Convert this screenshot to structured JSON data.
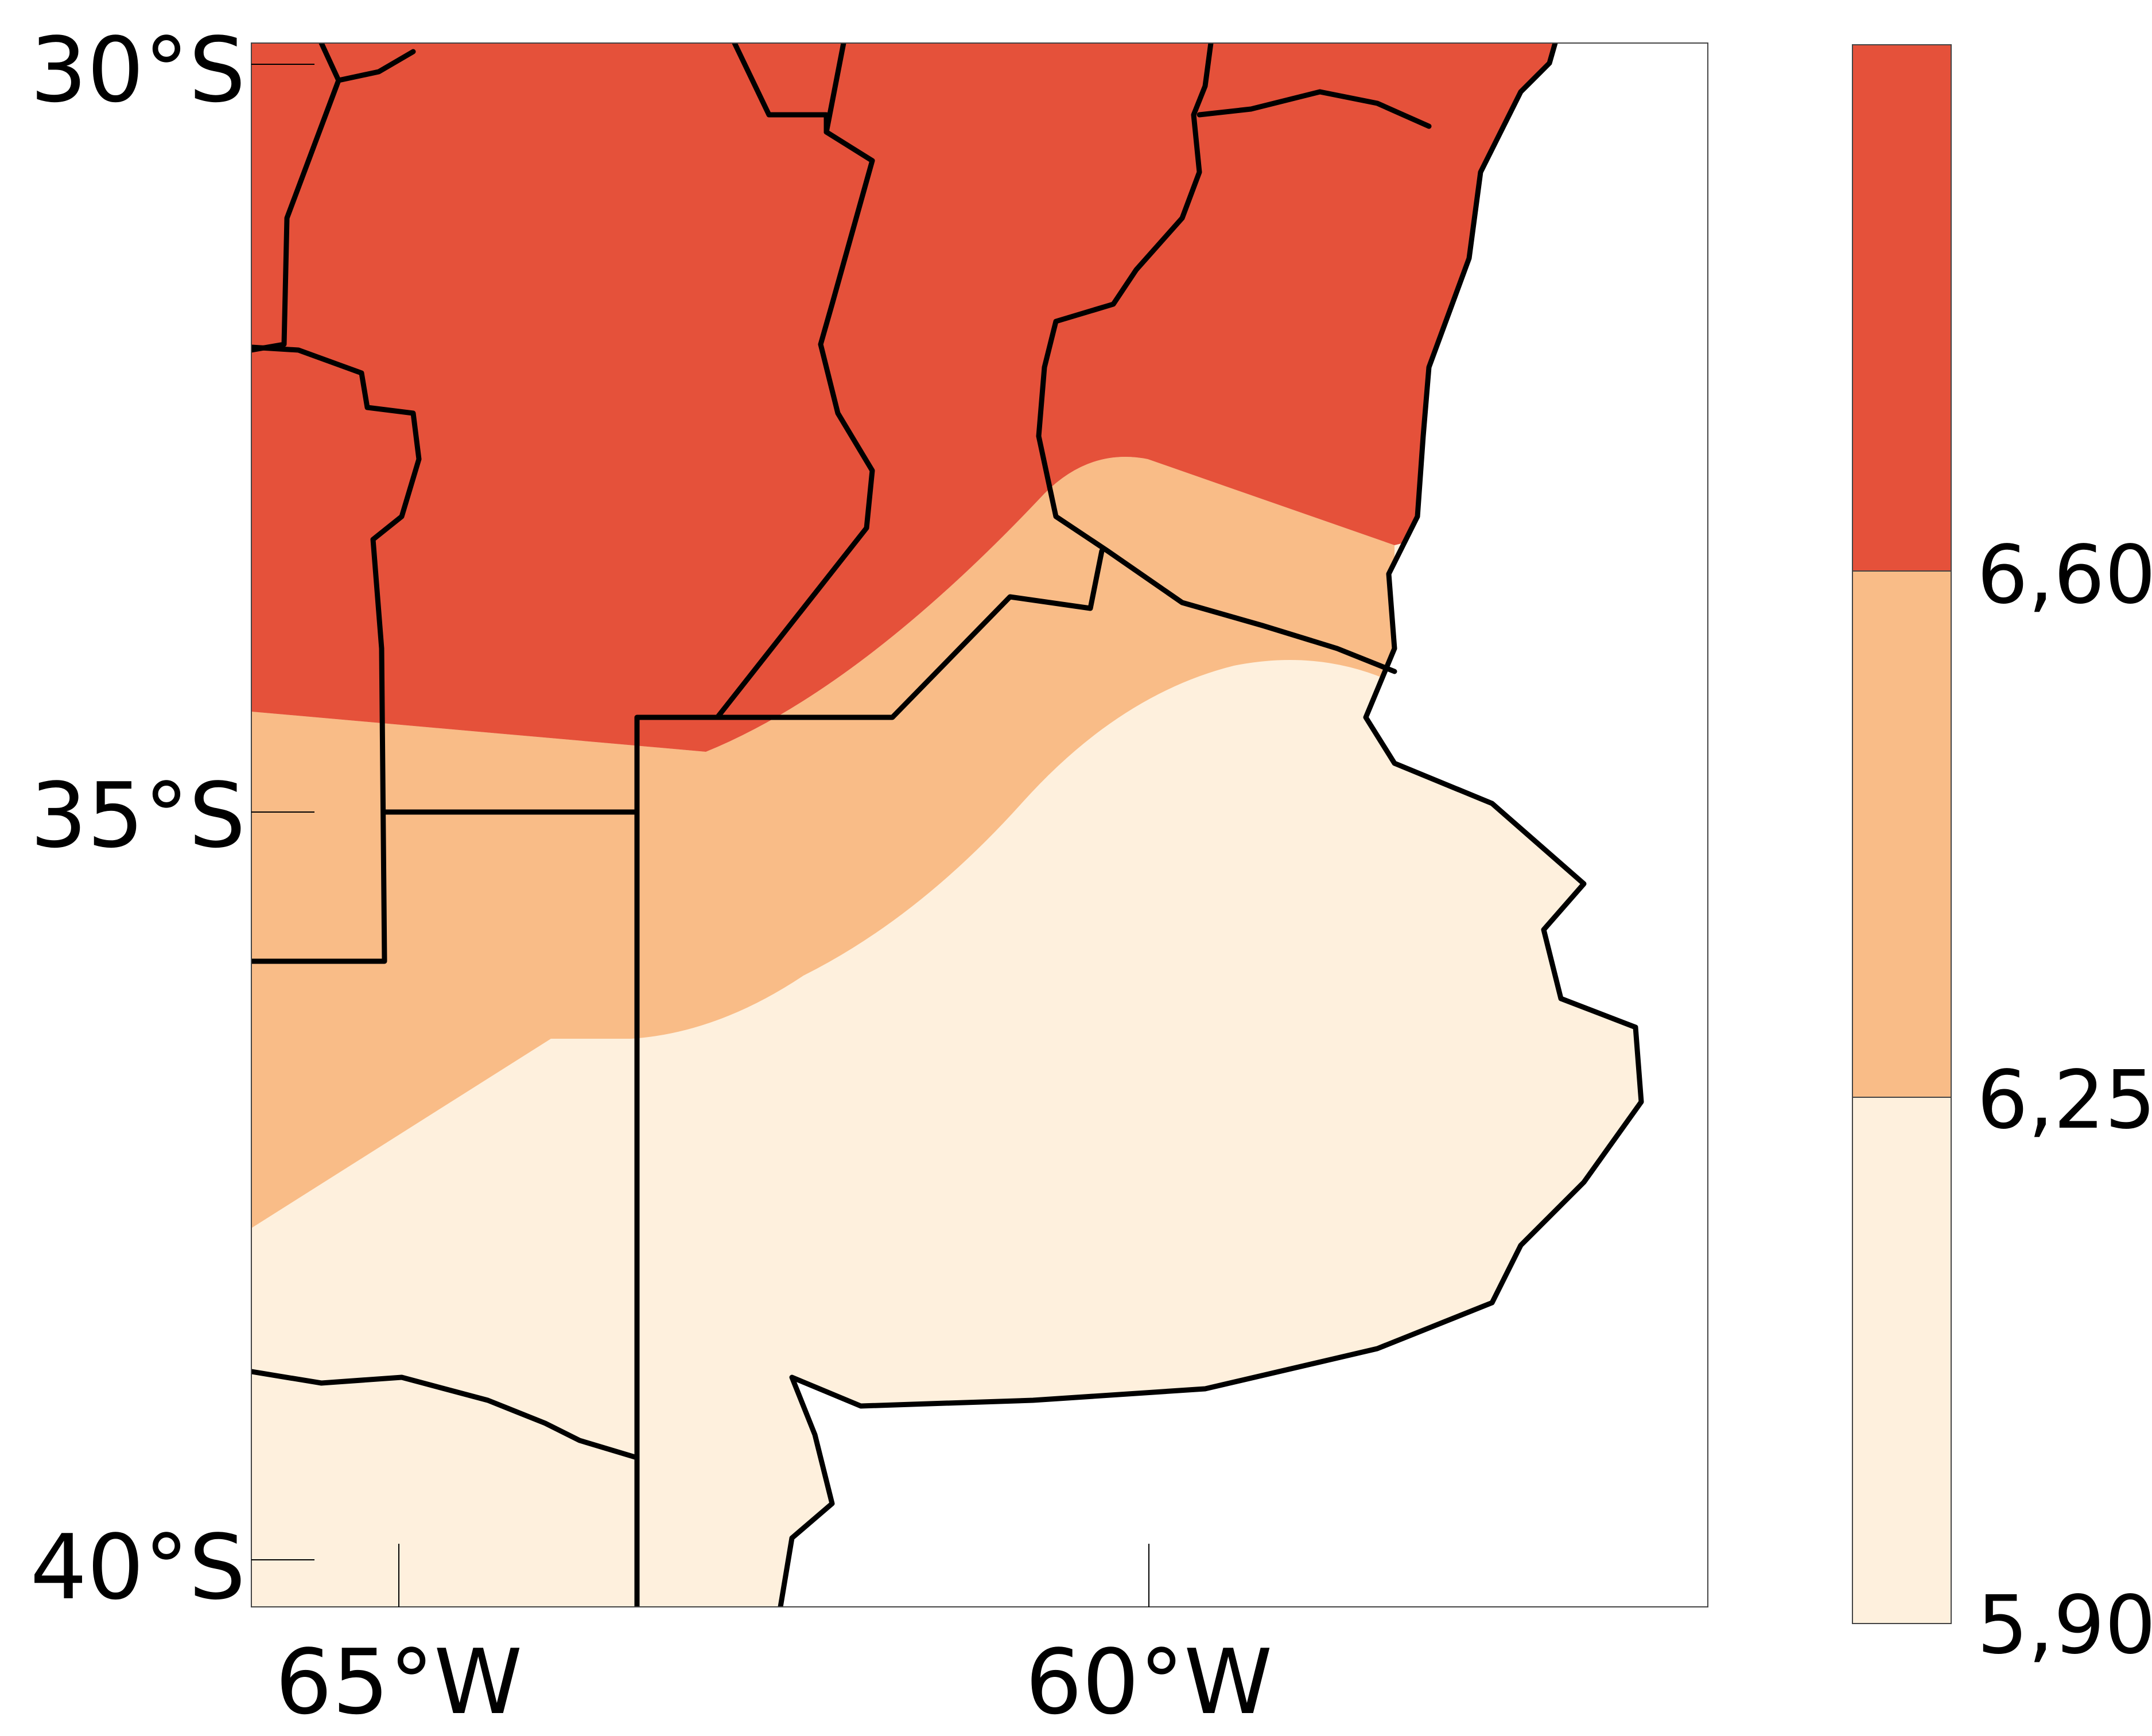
{
  "map": {
    "latitude_labels": [
      "30°S",
      "35°S",
      "40°S"
    ],
    "longitude_labels": [
      "65°W",
      "60°W"
    ],
    "colors": {
      "high": "#e5513a",
      "mid": "#f9bc87",
      "low": "#fef0dd",
      "ocean": "#ffffff",
      "boundary": "#000000"
    }
  },
  "colorbar": {
    "ticks": [
      "6,60",
      "6,25",
      "5,90"
    ],
    "bins": [
      {
        "from": 6.6,
        "color": "#e5513a"
      },
      {
        "from": 6.25,
        "to": 6.6,
        "color": "#f9bc87"
      },
      {
        "from": 5.9,
        "to": 6.25,
        "color": "#fef0dd"
      }
    ]
  }
}
